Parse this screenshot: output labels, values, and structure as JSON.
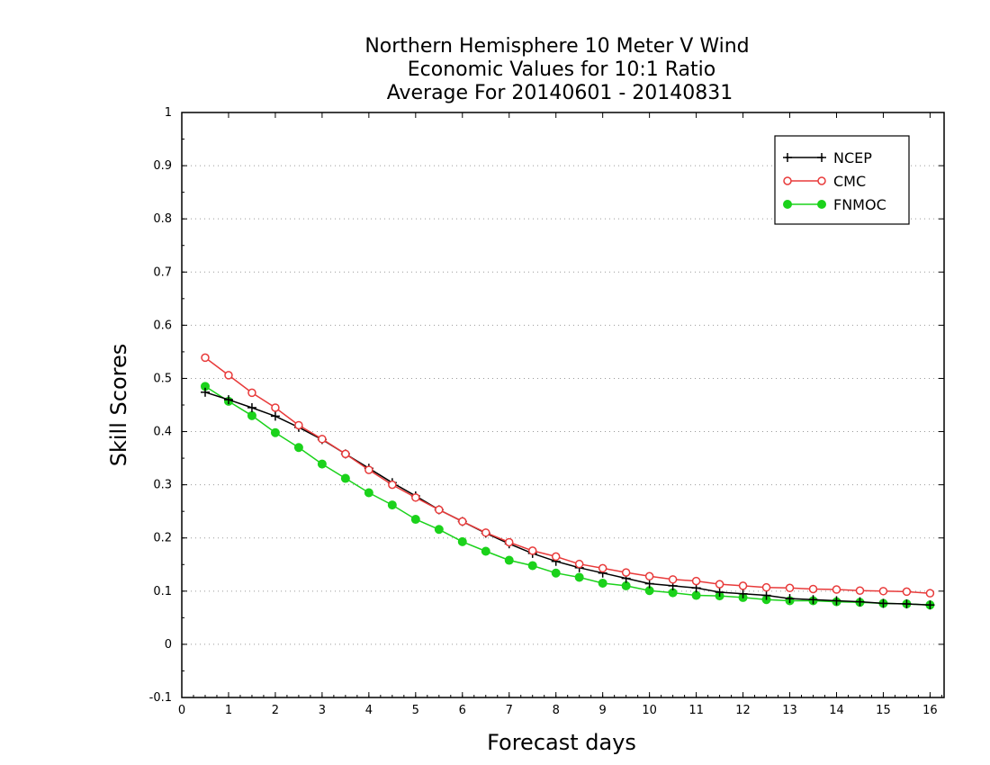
{
  "chart_data": {
    "type": "line",
    "title_lines": [
      "Northern Hemisphere 10 Meter V Wind",
      "Economic Values for 10:1 Ratio",
      "Average For 20140601 - 20140831"
    ],
    "xlabel": "Forecast days",
    "ylabel": "Skill Scores",
    "xlim": [
      0,
      16.3
    ],
    "ylim": [
      -0.1,
      1.0
    ],
    "xticks": [
      0,
      1,
      2,
      3,
      4,
      5,
      6,
      7,
      8,
      9,
      10,
      11,
      12,
      13,
      14,
      15,
      16
    ],
    "yticks": [
      -0.1,
      0,
      0.1,
      0.2,
      0.3,
      0.4,
      0.5,
      0.6,
      0.7,
      0.8,
      0.9,
      1.0
    ],
    "ytick_labels": [
      "-0.1",
      "0",
      "0.1",
      "0.2",
      "0.3",
      "0.4",
      "0.5",
      "0.6",
      "0.7",
      "0.8",
      "0.9",
      "1"
    ],
    "grid": "horizontal dotted",
    "legend_position": "top-right",
    "x": [
      0.5,
      1.0,
      1.5,
      2.0,
      2.5,
      3.0,
      3.5,
      4.0,
      4.5,
      5.0,
      5.5,
      6.0,
      6.5,
      7.0,
      7.5,
      8.0,
      8.5,
      9.0,
      9.5,
      10.0,
      10.5,
      11.0,
      11.5,
      12.0,
      12.5,
      13.0,
      13.5,
      14.0,
      14.5,
      15.0,
      15.5,
      16.0
    ],
    "series": [
      {
        "name": "NCEP",
        "color": "#000000",
        "marker": "plus",
        "values": [
          0.474,
          0.46,
          0.445,
          0.429,
          0.408,
          0.385,
          0.358,
          0.331,
          0.304,
          0.279,
          0.253,
          0.231,
          0.209,
          0.189,
          0.171,
          0.156,
          0.144,
          0.134,
          0.124,
          0.114,
          0.11,
          0.106,
          0.098,
          0.095,
          0.092,
          0.086,
          0.084,
          0.082,
          0.08,
          0.077,
          0.076,
          0.074
        ]
      },
      {
        "name": "CMC",
        "color": "#e83a3a",
        "marker": "open-circle",
        "values": [
          0.539,
          0.506,
          0.473,
          0.445,
          0.412,
          0.386,
          0.358,
          0.328,
          0.3,
          0.276,
          0.253,
          0.231,
          0.21,
          0.192,
          0.176,
          0.165,
          0.151,
          0.143,
          0.135,
          0.128,
          0.122,
          0.119,
          0.113,
          0.11,
          0.107,
          0.106,
          0.104,
          0.103,
          0.101,
          0.1,
          0.099,
          0.096
        ]
      },
      {
        "name": "FNMOC",
        "color": "#1bd21b",
        "marker": "filled-circle",
        "values": [
          0.485,
          0.457,
          0.43,
          0.398,
          0.37,
          0.339,
          0.312,
          0.285,
          0.262,
          0.235,
          0.216,
          0.193,
          0.175,
          0.158,
          0.148,
          0.134,
          0.126,
          0.115,
          0.11,
          0.101,
          0.097,
          0.092,
          0.091,
          0.088,
          0.084,
          0.082,
          0.082,
          0.08,
          0.079,
          0.077,
          0.076,
          0.074
        ]
      }
    ]
  }
}
